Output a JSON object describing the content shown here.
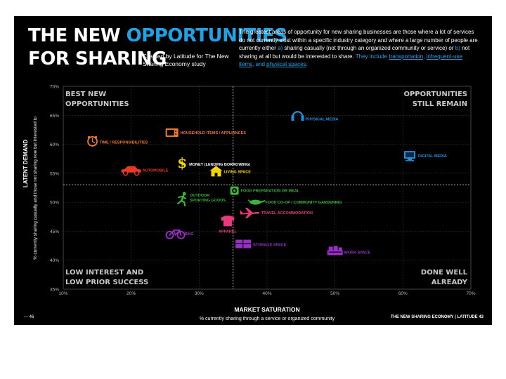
{
  "header": {
    "title_part1": "THE NEW ",
    "title_accent": "OPPORTUNITIES",
    "title_line2": "FOR SHARING",
    "credit": "Created by Latitude for The New Sharing Economy study",
    "intro_a": "The greatest areas of opportunity for new sharing businesses are those where a lot of services do not currently exist within a specific industry category and where a large number of people are currently either ",
    "intro_opt_a": "a)",
    "intro_b": " sharing casually (not through an organized community or service) or ",
    "intro_opt_b": "b)",
    "intro_c": " not sharing at all but would be interested to share. ",
    "intro_d": "They include ",
    "intro_link1": "transportation",
    "intro_e": ", ",
    "intro_link2": "infrequent-use items",
    "intro_f": ", and ",
    "intro_link3": "physical spaces",
    "intro_g": "."
  },
  "footer": {
    "page": "— 46",
    "brand": "THE NEW SHARING ECONOMY | LATITUDE 43"
  },
  "colors": {
    "background": "#000000",
    "accent": "#1fa3e6",
    "quadrant_label": "#c8c8c8",
    "tick_label": "#bbbbbb"
  },
  "chart_data": {
    "type": "scatter",
    "xlabel": "MARKET SATURATION",
    "xlabel_sub": "% currently sharing through a service or organized community",
    "ylabel": "LATENT DEMAND",
    "ylabel_sub": "% currently sharing casually and those not sharing now but interested to",
    "x_ticks": [
      "10%",
      "20%",
      "30%",
      "40%",
      "50%",
      "60%",
      "70%"
    ],
    "y_ticks": [
      "35%",
      "40%",
      "45%",
      "50%",
      "55%",
      "60%",
      "65%",
      "70%"
    ],
    "xlim": [
      10,
      70
    ],
    "ylim": [
      35,
      70
    ],
    "grid": true,
    "dividers": {
      "x": 35,
      "y": 53
    },
    "quadrants": {
      "top_left": [
        "BEST NEW",
        "OPPORTUNITIES"
      ],
      "top_right": [
        "OPPORTUNITIES",
        "STILL REMAIN"
      ],
      "bottom_left": [
        "LOW INTEREST AND",
        "LOW PRIOR SUCCESS"
      ],
      "bottom_right": [
        "DONE WELL",
        "ALREADY"
      ]
    },
    "points": [
      {
        "label": "PHYSICAL MEDIA",
        "x": 44.5,
        "y": 65.0,
        "color": "#1e90e0",
        "icon": "headphones-icon"
      },
      {
        "label": "DIGITAL MEDIA",
        "x": 61.0,
        "y": 58.0,
        "color": "#1e90e0",
        "icon": "computer-icon"
      },
      {
        "label": "TIME / RESPONSIBILITIES",
        "x": 14.3,
        "y": 60.5,
        "color": "#f07830",
        "icon": "clock-icon"
      },
      {
        "label": "HOUSEHOLD ITEMS / APPLIANCES",
        "x": 26.0,
        "y": 62.0,
        "color": "#f07830",
        "icon": "microwave-icon"
      },
      {
        "label": "AUTOMOBILE",
        "x": 20.0,
        "y": 55.5,
        "color": "#e83a20",
        "icon": "car-icon"
      },
      {
        "label": "MONEY (LENDING BORROWING)",
        "x": 27.5,
        "y": 56.8,
        "color": "#f5d800",
        "label_color": "#ffffff",
        "icon": "dollar-icon"
      },
      {
        "label": "LIVING SPACE",
        "x": 32.5,
        "y": 55.3,
        "color": "#f5d800",
        "icon": "house-icon"
      },
      {
        "label": "FOOD PREPARATION OR MEAL",
        "x": 35.2,
        "y": 52.0,
        "color": "#3ab53a",
        "icon": "food-icon"
      },
      {
        "label": "OUTDOOR SPORTING GOODS",
        "x": 27.5,
        "y": 50.5,
        "color": "#3ab53a",
        "icon": "runner-icon"
      },
      {
        "label": "FOOD CO-OP / COMMUNITY GARDENING",
        "x": 38.5,
        "y": 50.0,
        "color": "#3ab53a",
        "icon": "garden-icon"
      },
      {
        "label": "TRAVEL ACCOMMODATION",
        "x": 37.5,
        "y": 48.2,
        "color": "#e83a7a",
        "icon": "airplane-icon"
      },
      {
        "label": "APPAREL",
        "x": 34.2,
        "y": 46.7,
        "color": "#e83a7a",
        "icon": "shirt-icon"
      },
      {
        "label": "BIKE",
        "x": 26.5,
        "y": 44.7,
        "color": "#9b30c8",
        "icon": "bike-icon"
      },
      {
        "label": "STORAGE SPACE",
        "x": 36.5,
        "y": 42.8,
        "color": "#9b30c8",
        "icon": "storage-icon"
      },
      {
        "label": "WORK SPACE",
        "x": 50.0,
        "y": 41.6,
        "color": "#9b30c8",
        "icon": "office-icon"
      }
    ]
  }
}
